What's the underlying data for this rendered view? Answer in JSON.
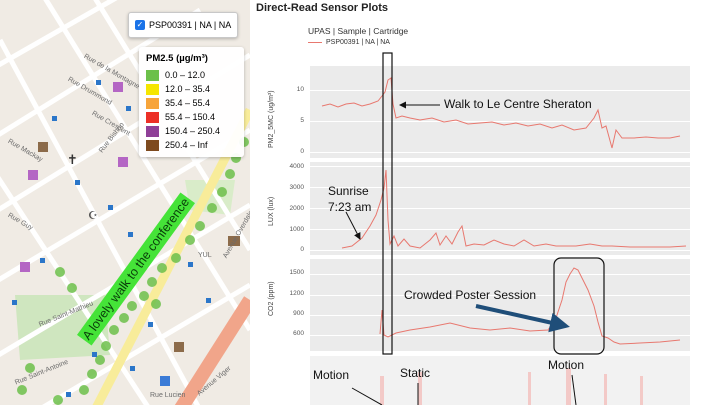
{
  "map": {
    "layer_toggle": {
      "label": "PSP00391 | NA | NA",
      "checked": true
    },
    "legend": {
      "title": "PM2.5 (µg/m³)",
      "items": [
        {
          "label": "0.0 – 12.0",
          "color": "#6cc04a"
        },
        {
          "label": "12.0 – 35.4",
          "color": "#f5e600"
        },
        {
          "label": "35.4 – 55.4",
          "color": "#f7a43a"
        },
        {
          "label": "55.4 – 150.4",
          "color": "#ec2f26"
        },
        {
          "label": "150.4 – 250.4",
          "color": "#8f3f97"
        },
        {
          "label": "250.4 – Inf",
          "color": "#7e4a1e"
        }
      ]
    },
    "street_labels": [
      "Rue de la Montagne",
      "Rue Drummond",
      "Rue Crescent",
      "Rue Bishop",
      "Rue Mackay",
      "Rue Guy",
      "Avenue Overdale",
      "Rue Saint-Antoine",
      "Rue Saint-Mathieu",
      "Avenue Viger",
      "Rue Lucien",
      "YUL"
    ],
    "banner_text": "A lovely walk to the conference"
  },
  "plots": {
    "title": "Direct-Read Sensor Plots",
    "series_legend": {
      "title": "UPAS | Sample | Cartridge",
      "entry": "PSP00391 | NA | NA",
      "color": "#e8786f"
    },
    "panels": [
      {
        "ylabel": "PM2_5MC (ug/m³)",
        "ticks": [
          "10",
          "5",
          "0"
        ]
      },
      {
        "ylabel": "LUX (lux)",
        "ticks": [
          "4000",
          "3000",
          "2000",
          "1000",
          "0"
        ]
      },
      {
        "ylabel": "CO2 (ppm)",
        "ticks": [
          "1500",
          "1200",
          "900",
          "600"
        ]
      },
      {
        "ylabel": "",
        "ticks": []
      }
    ],
    "annotations": {
      "walk": "Walk to Le Centre Sheraton",
      "sunrise": [
        "Sunrise",
        "7:23 am"
      ],
      "poster": "Crowded Poster Session",
      "motion_left": "Motion",
      "static": "Static",
      "motion_right": "Motion"
    }
  }
}
